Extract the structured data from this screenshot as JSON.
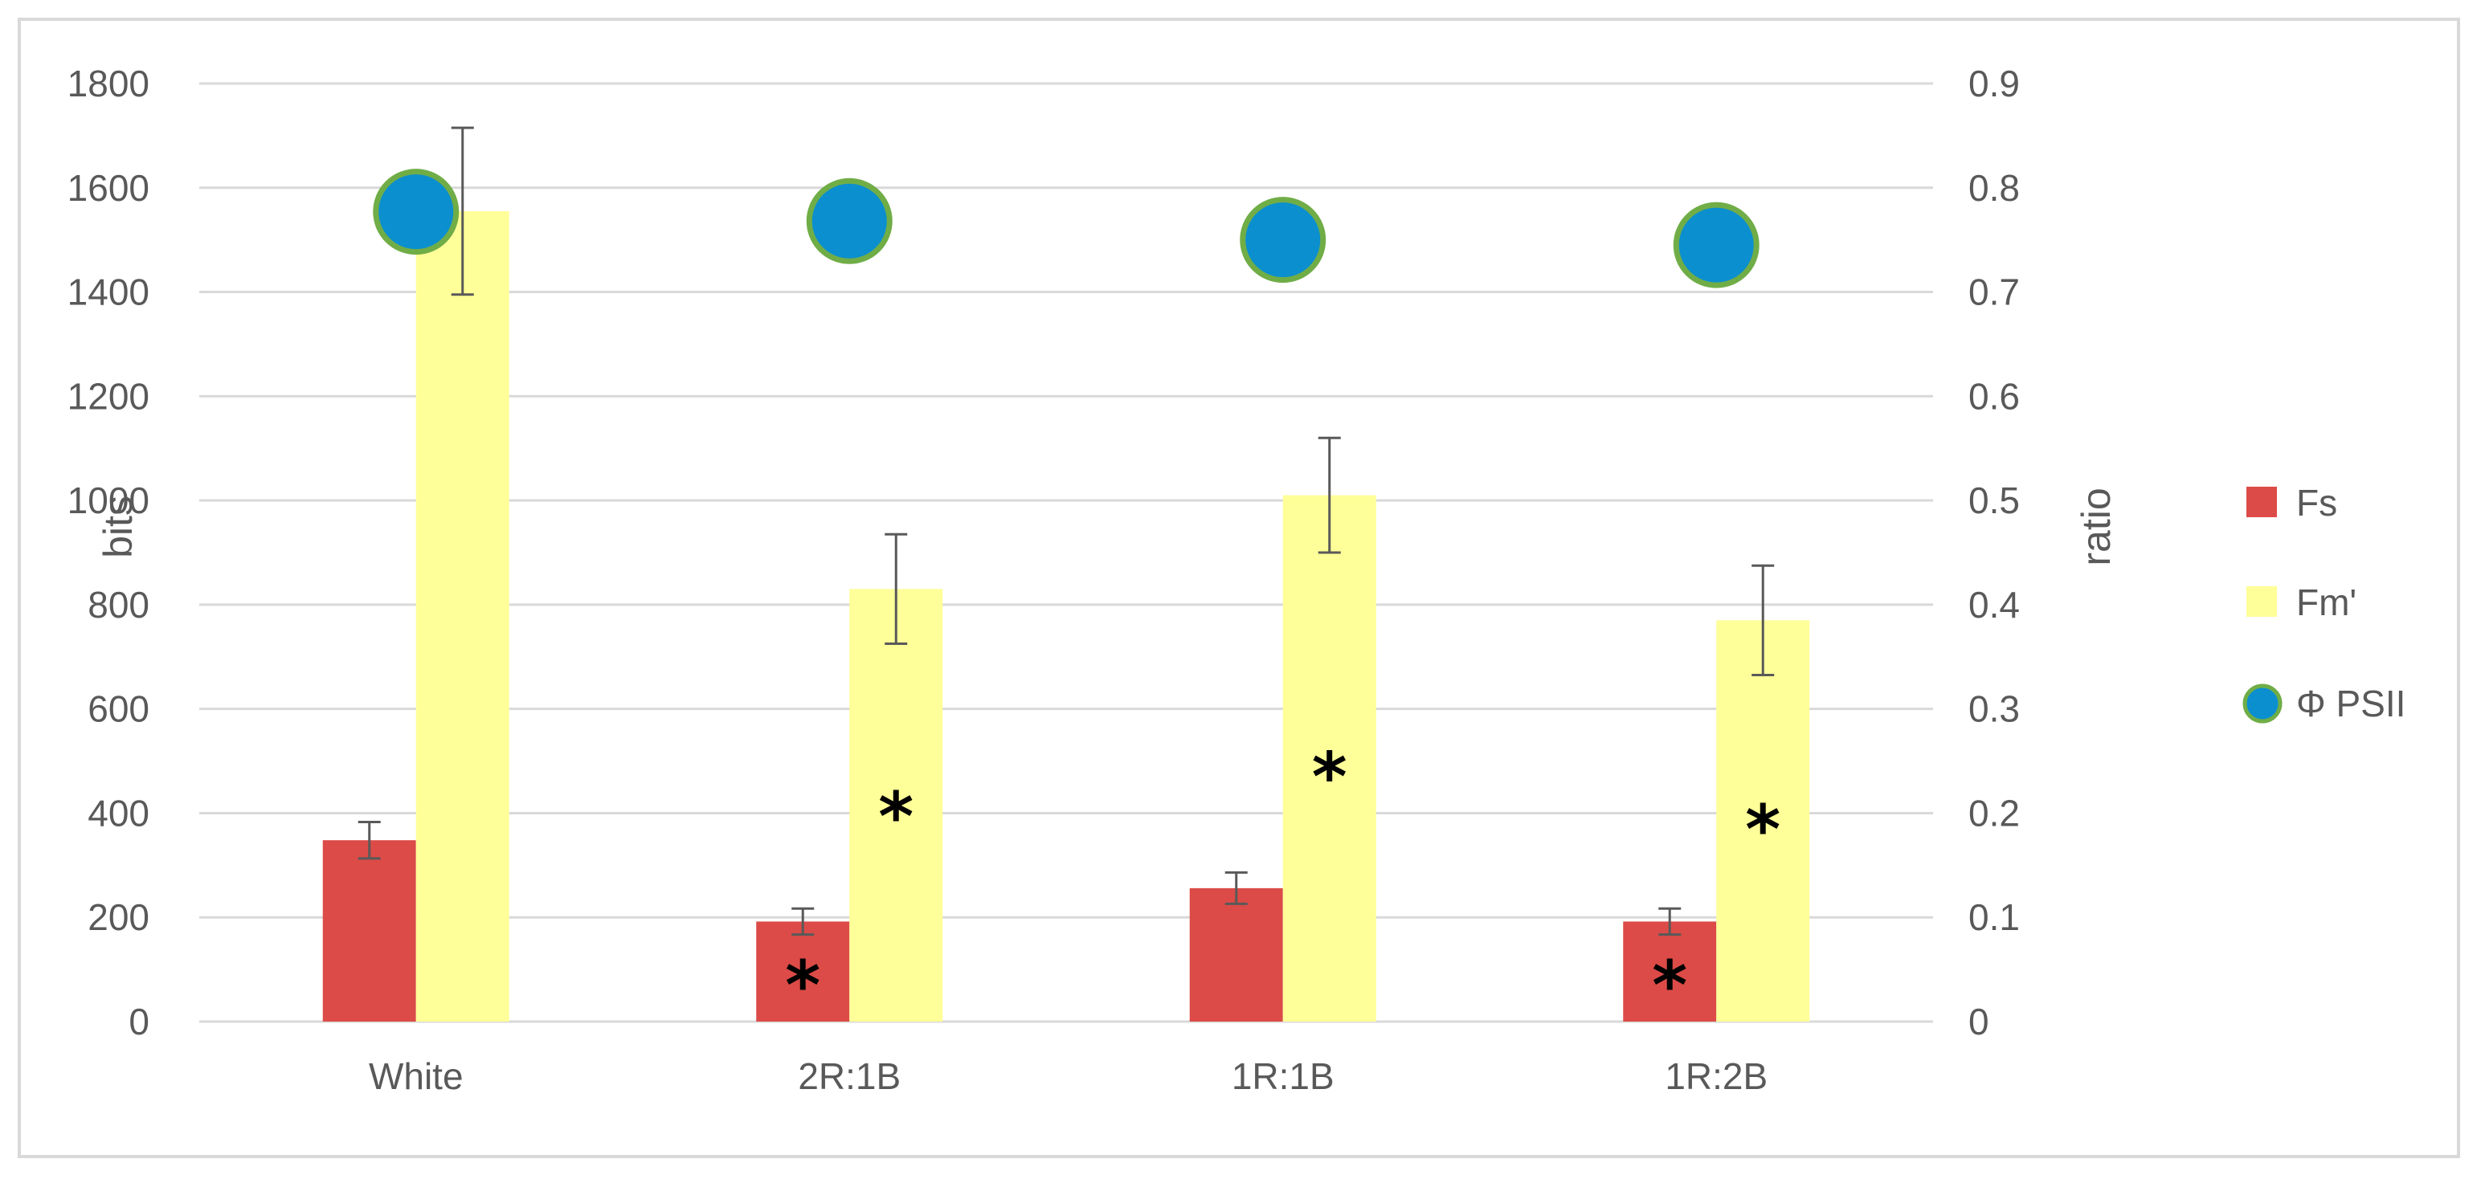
{
  "chart_data": {
    "type": "bar",
    "categories": [
      "White",
      "2R:1B",
      "1R:1B",
      "1R:2B"
    ],
    "series": [
      {
        "name": "Fs",
        "kind": "bar",
        "axis": "left",
        "color": "#dc4b47",
        "values": [
          348,
          192,
          256,
          192
        ],
        "err": [
          35,
          25,
          30,
          25
        ]
      },
      {
        "name": "Fm'",
        "kind": "bar",
        "axis": "left",
        "color": "#ffff99",
        "values": [
          1555,
          830,
          1010,
          770
        ],
        "err": [
          160,
          105,
          110,
          105
        ]
      },
      {
        "name": "Φ PSII",
        "kind": "point",
        "axis": "right",
        "color": "#0b8fcf",
        "edge": "#70ad47",
        "values": [
          0.777,
          0.768,
          0.75,
          0.745
        ],
        "err": [
          0.006,
          0.006,
          0.002,
          0.023
        ]
      }
    ],
    "significance": [
      {
        "series": "Fs",
        "category": "2R:1B",
        "mark": "*"
      },
      {
        "series": "Fs",
        "category": "1R:2B",
        "mark": "*"
      },
      {
        "series": "Fm'",
        "category": "2R:1B",
        "mark": "*"
      },
      {
        "series": "Fm'",
        "category": "1R:1B",
        "mark": "*"
      },
      {
        "series": "Fm'",
        "category": "1R:2B",
        "mark": "*"
      }
    ],
    "ylabel": "bits",
    "y2label": "ratio",
    "ylim": [
      0,
      1800
    ],
    "y2lim": [
      0,
      0.9
    ],
    "yticks": [
      "0",
      "200",
      "400",
      "600",
      "800",
      "1000",
      "1200",
      "1400",
      "1600",
      "1800"
    ],
    "y2ticks": [
      "0",
      "0.1",
      "0.2",
      "0.3",
      "0.4",
      "0.5",
      "0.6",
      "0.7",
      "0.8",
      "0.9"
    ],
    "grid": true,
    "legend_position": "right"
  }
}
